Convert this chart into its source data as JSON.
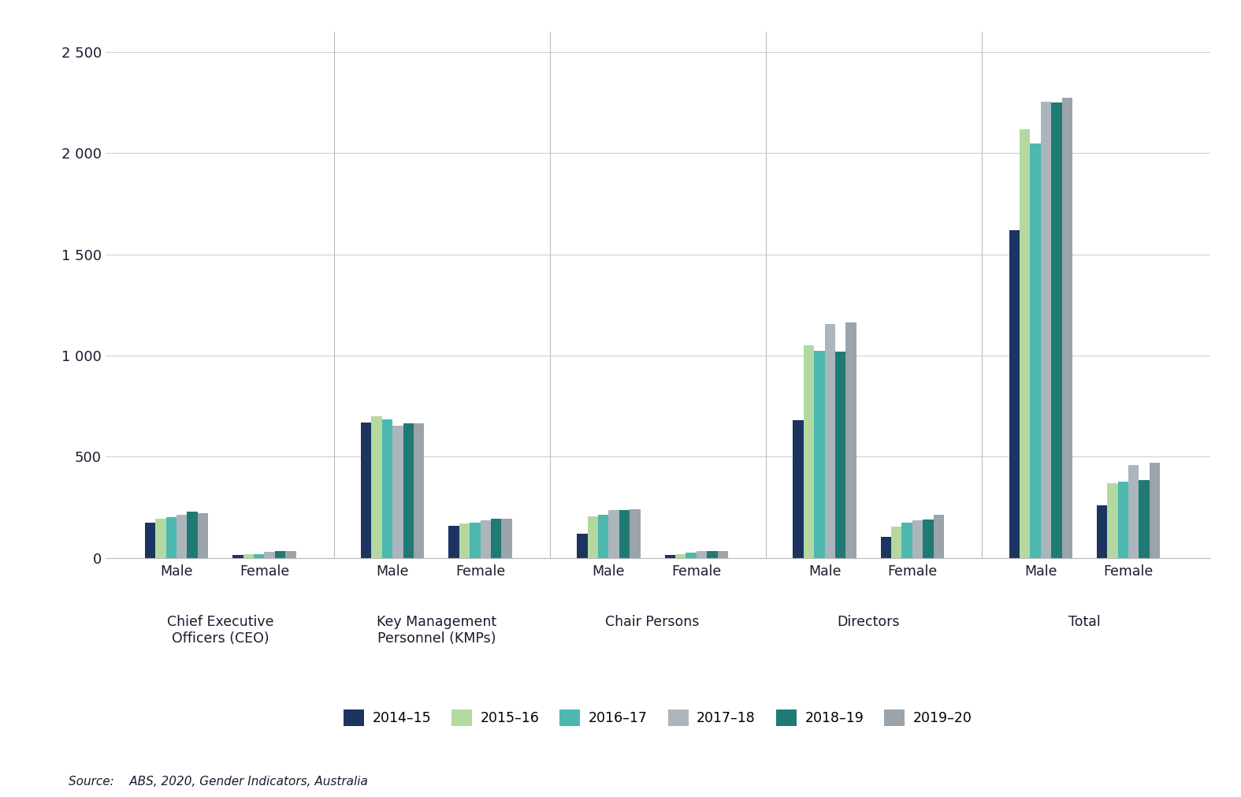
{
  "source": "Source:    ABS, 2020, Gender Indicators, Australia",
  "series": [
    {
      "label": "2014–15",
      "color": "#1d3461",
      "values": [
        175,
        15,
        670,
        160,
        120,
        15,
        680,
        105,
        1620,
        260
      ]
    },
    {
      "label": "2015–16",
      "color": "#b3d9a0",
      "values": [
        195,
        20,
        700,
        170,
        205,
        20,
        1050,
        155,
        2120,
        370
      ]
    },
    {
      "label": "2016–17",
      "color": "#4db8b0",
      "values": [
        200,
        20,
        685,
        175,
        215,
        28,
        1025,
        175,
        2050,
        375
      ]
    },
    {
      "label": "2017–18",
      "color": "#adb5bc",
      "values": [
        215,
        30,
        655,
        185,
        235,
        35,
        1155,
        185,
        2255,
        460
      ]
    },
    {
      "label": "2018–19",
      "color": "#1f7a75",
      "values": [
        230,
        35,
        665,
        193,
        235,
        35,
        1020,
        190,
        2250,
        385
      ]
    },
    {
      "label": "2019–20",
      "color": "#9ba3ab",
      "values": [
        220,
        35,
        665,
        193,
        242,
        35,
        1165,
        215,
        2275,
        470
      ]
    }
  ],
  "gender_labels": [
    "Male",
    "Female",
    "Male",
    "Female",
    "Male",
    "Female",
    "Male",
    "Female",
    "Male",
    "Female"
  ],
  "category_labels": [
    "Chief Executive\nOfficers (CEO)",
    "Key Management\nPersonnel (KMPs)",
    "Chair Persons",
    "Directors",
    "Total"
  ],
  "ylim": [
    0,
    2600
  ],
  "yticks": [
    0,
    500,
    1000,
    1500,
    2000,
    2500
  ],
  "ytick_labels": [
    "0",
    "500",
    "1 000",
    "1 500",
    "2 000",
    "2 500"
  ],
  "background_color": "#ffffff",
  "grid_color": "#d0d0d0",
  "text_color": "#1a1a2e"
}
